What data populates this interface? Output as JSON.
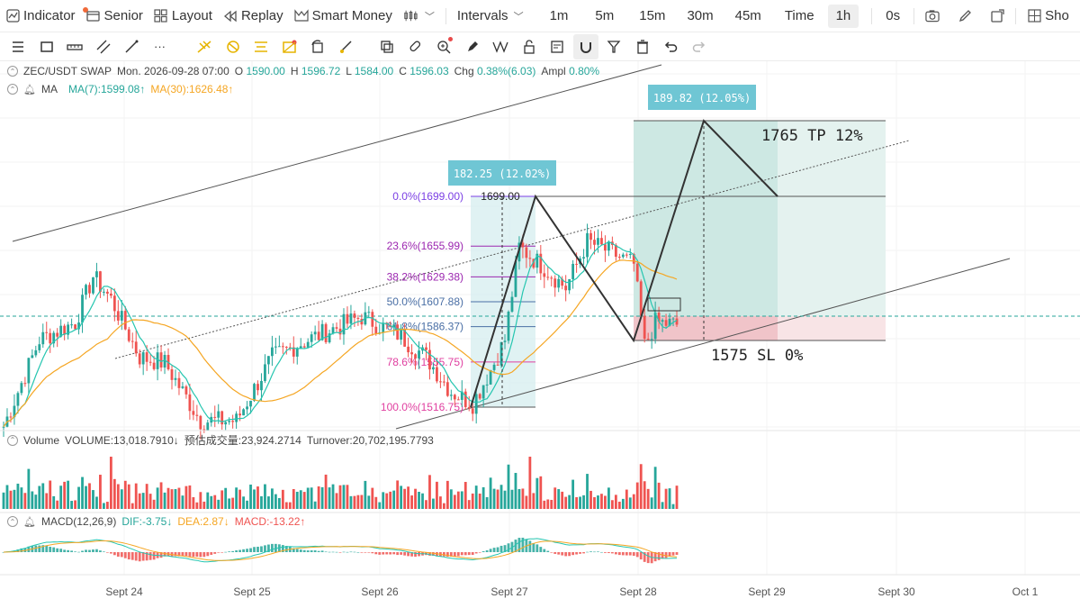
{
  "toolbar": {
    "indicator": "Indicator",
    "senior": "Senior",
    "layout": "Layout",
    "replay": "Replay",
    "smart_money": "Smart Money",
    "intervals": "Intervals",
    "timeframes": [
      "1m",
      "5m",
      "15m",
      "30m",
      "45m",
      "Time",
      "1h"
    ],
    "active_timeframe": "1h",
    "countdown": "0s",
    "show": "Sho"
  },
  "drawing_tools": [
    "menu-icon",
    "rectangle-icon",
    "ruler-icon",
    "parallel-channel-icon",
    "trend-line-icon",
    "more-icon",
    "fib-icon",
    "fib-circle-icon",
    "fib-fan-icon",
    "pattern-icon",
    "rotate-icon",
    "brush-icon",
    "copy-icon",
    "eraser-icon",
    "zoom-icon",
    "marker-icon",
    "measure-icon",
    "lock-icon",
    "template-icon",
    "magnet-icon",
    "filter-icon",
    "trash-icon",
    "undo-icon",
    "redo-icon"
  ],
  "legend": {
    "symbol": "ZEC/USDT SWAP",
    "datetime": "Mon. 2026-09-28 07:00",
    "open_label": "O",
    "open": "1590.00",
    "high_label": "H",
    "high": "1596.72",
    "low_label": "L",
    "low": "1584.00",
    "close_label": "C",
    "close": "1596.03",
    "chg_label": "Chg",
    "chg": "0.38%(6.03)",
    "ampl_label": "Ampl",
    "ampl": "0.80%",
    "ma_label": "MA",
    "ma7": "MA(7):1599.08↑",
    "ma30": "MA(30):1626.48↑"
  },
  "volume_legend": {
    "label": "Volume",
    "volume": "VOLUME:13,018.7910↓",
    "est_volume": "预估成交量:23,924.2714",
    "turnover": "Turnover:20,702,195.7793"
  },
  "macd_legend": {
    "label": "MACD(12,26,9)",
    "dif": "DIF:-3.75↓",
    "dea": "DEA:2.87↓",
    "macd": "MACD:-13.22↑"
  },
  "fib_levels": [
    {
      "ratio": "0.0%",
      "value": 1699.0,
      "label": "0.0%(1699.00)",
      "color": "#7b3fe4"
    },
    {
      "ratio": "23.6%",
      "value": 1655.99,
      "label": "23.6%(1655.99)",
      "color": "#9c27b0"
    },
    {
      "ratio": "38.2%",
      "value": 1629.38,
      "label": "38.2%(1629.38)",
      "color": "#9c27b0"
    },
    {
      "ratio": "50.0%",
      "value": 1607.88,
      "label": "50.0%(1607.88)",
      "color": "#4a6fa5"
    },
    {
      "ratio": "61.8%",
      "value": 1586.37,
      "label": "61.8%(1586.37)",
      "color": "#4a6fa5"
    },
    {
      "ratio": "78.6%",
      "value": 1555.75,
      "label": "78.6%(1555.75)",
      "color": "#e040a0"
    },
    {
      "ratio": "100.0%",
      "value": 1516.75,
      "label": "100.0%(1516.75)",
      "color": "#e040a0"
    }
  ],
  "annotations": {
    "peak_price": "1699.00",
    "measure1": "182.25 (12.02%)",
    "measure2": "189.82 (12.05%)",
    "tp_text": "1765 TP 12%",
    "sl_text": "1575 SL 0%"
  },
  "time_axis": [
    "Sept 24",
    "Sept 25",
    "Sept 26",
    "Sept 27",
    "Sept 28",
    "Sept 29",
    "Sept 30",
    "Oct 1"
  ],
  "colors": {
    "up": "#26a69a",
    "down": "#ef5350",
    "ma7": "#26c6b0",
    "ma30": "#f5a623",
    "measure_box": "#6fc6d4",
    "tp_zone": "#d4ece8",
    "sl_zone": "#f5d0d3"
  }
}
